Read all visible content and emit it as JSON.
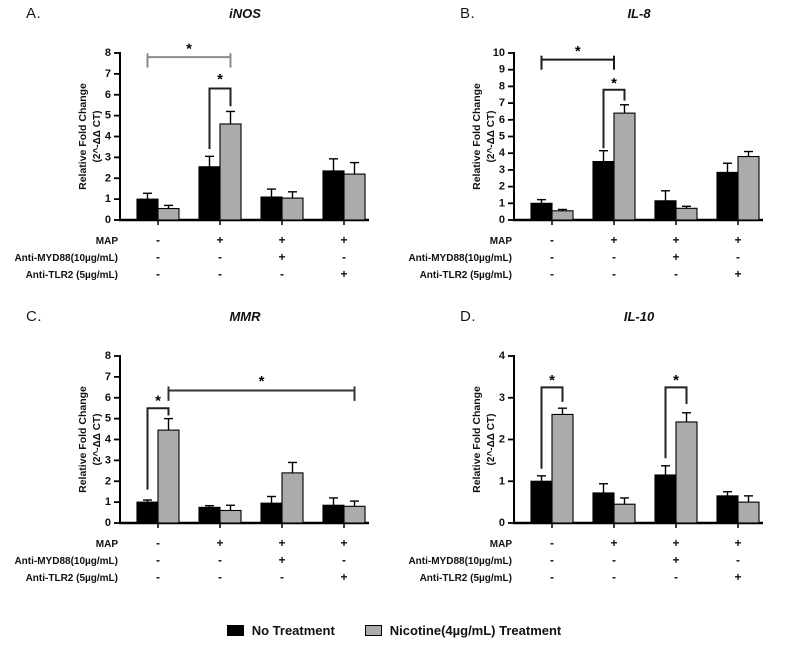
{
  "legend": {
    "items": [
      {
        "label": "No Treatment",
        "color": "#000000"
      },
      {
        "label": "Nicotine(4µg/mL) Treatment",
        "color": "#ababab"
      }
    ]
  },
  "chart_data": [
    {
      "type": "bar",
      "id": "inos",
      "panel": "A.",
      "title": "iNOS",
      "ylabel_line1": "Relative Fold Change",
      "ylabel_line2": "(2^-ΔΔ CT)",
      "ylim": [
        0,
        8
      ],
      "ytick_step": 1,
      "grid": false,
      "series": [
        {
          "name": "No Treatment",
          "color": "#000000",
          "values": [
            1.0,
            2.55,
            1.1,
            2.35
          ],
          "errors": [
            0.28,
            0.5,
            0.38,
            0.58
          ]
        },
        {
          "name": "Nicotine(4µg/mL) Treatment",
          "color": "#ababab",
          "values": [
            0.55,
            4.6,
            1.05,
            2.2
          ],
          "errors": [
            0.15,
            0.6,
            0.3,
            0.55
          ]
        }
      ],
      "conditions": [
        {
          "label": "MAP",
          "signs": [
            "-",
            "+",
            "+",
            "+"
          ]
        },
        {
          "label": "Anti-MYD88(10µg/mL)",
          "signs": [
            "-",
            "-",
            "+",
            "-"
          ]
        },
        {
          "label": "Anti-TLR2 (5µg/mL)",
          "signs": [
            "-",
            "-",
            "-",
            "+"
          ]
        }
      ],
      "significance": [
        {
          "style": "span",
          "x1": {
            "group": 0,
            "at": 0
          },
          "x2": {
            "group": 1,
            "at": 1
          },
          "y": 7.8,
          "cap": 0.5,
          "star_y": 8.4,
          "label": "*",
          "color": "#8c8c8c"
        },
        {
          "style": "bracket",
          "x1": {
            "group": 1,
            "at": 0
          },
          "x2": {
            "group": 1,
            "at": 1
          },
          "y": 6.3,
          "drop1": 2.9,
          "drop2": 0.85,
          "star_y": 6.95,
          "label": "*",
          "color": "#222222"
        }
      ]
    },
    {
      "type": "bar",
      "id": "il8",
      "panel": "B.",
      "title": "IL-8",
      "ylabel_line1": "Relative Fold Change",
      "ylabel_line2": "(2^-ΔΔ CT)",
      "ylim": [
        0,
        10
      ],
      "ytick_step": 1,
      "grid": false,
      "series": [
        {
          "name": "No Treatment",
          "color": "#000000",
          "values": [
            1.0,
            3.5,
            1.15,
            2.85
          ],
          "errors": [
            0.22,
            0.65,
            0.6,
            0.55
          ]
        },
        {
          "name": "Nicotine(4µg/mL) Treatment",
          "color": "#ababab",
          "values": [
            0.55,
            6.4,
            0.7,
            3.8
          ],
          "errors": [
            0.08,
            0.5,
            0.12,
            0.3
          ]
        }
      ],
      "conditions": [
        {
          "label": "MAP",
          "signs": [
            "-",
            "+",
            "+",
            "+"
          ]
        },
        {
          "label": "Anti-MYD88(10µg/mL)",
          "signs": [
            "-",
            "-",
            "+",
            "-"
          ]
        },
        {
          "label": "Anti-TLR2 (5µg/mL)",
          "signs": [
            "-",
            "-",
            "-",
            "+"
          ]
        }
      ],
      "significance": [
        {
          "style": "span",
          "x1": {
            "group": 0,
            "at": 0
          },
          "x2": {
            "group": 1,
            "at": "mid"
          },
          "y": 9.6,
          "cap": 0.6,
          "star_y": 10.35,
          "label": "*",
          "color": "#1a1a1a"
        },
        {
          "style": "bracket",
          "x1": {
            "group": 1,
            "at": 0
          },
          "x2": {
            "group": 1,
            "at": 1
          },
          "y": 7.8,
          "drop1": 3.5,
          "drop2": 0.65,
          "star_y": 8.45,
          "label": "*",
          "color": "#222222"
        }
      ]
    },
    {
      "type": "bar",
      "id": "mmr",
      "panel": "C.",
      "title": "MMR",
      "ylabel_line1": "Relative Fold Change",
      "ylabel_line2": "(2^-ΔΔ CT)",
      "ylim": [
        0,
        8
      ],
      "ytick_step": 1,
      "grid": false,
      "series": [
        {
          "name": "No Treatment",
          "color": "#000000",
          "values": [
            1.0,
            0.75,
            0.95,
            0.85
          ],
          "errors": [
            0.1,
            0.08,
            0.32,
            0.35
          ]
        },
        {
          "name": "Nicotine(4µg/mL) Treatment",
          "color": "#ababab",
          "values": [
            4.45,
            0.6,
            2.4,
            0.8
          ],
          "errors": [
            0.55,
            0.25,
            0.5,
            0.25
          ]
        }
      ],
      "conditions": [
        {
          "label": "MAP",
          "signs": [
            "-",
            "+",
            "+",
            "+"
          ]
        },
        {
          "label": "Anti-MYD88(10µg/mL)",
          "signs": [
            "-",
            "-",
            "+",
            "-"
          ]
        },
        {
          "label": "Anti-TLR2 (5µg/mL)",
          "signs": [
            "-",
            "-",
            "-",
            "+"
          ]
        }
      ],
      "significance": [
        {
          "style": "bracket",
          "x1": {
            "group": 0,
            "at": 0
          },
          "x2": {
            "group": 0,
            "at": 1
          },
          "y": 5.5,
          "drop1": 3.9,
          "drop2": 0.35,
          "star_y": 6.05,
          "label": "*",
          "color": "#222222"
        },
        {
          "style": "span",
          "x1": {
            "group": 0,
            "at": 1
          },
          "x2": {
            "group": 3,
            "at": 1
          },
          "y": 6.35,
          "cap": 0.5,
          "star_y": 7.0,
          "label": "*",
          "color": "#333333"
        }
      ]
    },
    {
      "type": "bar",
      "id": "il10",
      "panel": "D.",
      "title": "IL-10",
      "ylabel_line1": "Relative Fold Change",
      "ylabel_line2": "(2^-ΔΔ CT)",
      "ylim": [
        0,
        4
      ],
      "ytick_step": 1,
      "grid": false,
      "series": [
        {
          "name": "No Treatment",
          "color": "#000000",
          "values": [
            1.0,
            0.72,
            1.15,
            0.65
          ],
          "errors": [
            0.13,
            0.22,
            0.22,
            0.1
          ]
        },
        {
          "name": "Nicotine(4µg/mL) Treatment",
          "color": "#ababab",
          "values": [
            2.6,
            0.45,
            2.42,
            0.5
          ],
          "errors": [
            0.15,
            0.15,
            0.22,
            0.15
          ]
        }
      ],
      "conditions": [
        {
          "label": "MAP",
          "signs": [
            "-",
            "+",
            "+",
            "+"
          ]
        },
        {
          "label": "Anti-MYD88(10µg/mL)",
          "signs": [
            "-",
            "-",
            "+",
            "-"
          ]
        },
        {
          "label": "Anti-TLR2 (5µg/mL)",
          "signs": [
            "-",
            "-",
            "-",
            "+"
          ]
        }
      ],
      "significance": [
        {
          "style": "bracket",
          "x1": {
            "group": 0,
            "at": 0
          },
          "x2": {
            "group": 0,
            "at": 1
          },
          "y": 3.25,
          "drop1": 1.95,
          "drop2": 0.35,
          "star_y": 3.52,
          "label": "*",
          "color": "#222222"
        },
        {
          "style": "bracket",
          "x1": {
            "group": 2,
            "at": 0
          },
          "x2": {
            "group": 2,
            "at": 1
          },
          "y": 3.25,
          "drop1": 1.7,
          "drop2": 0.4,
          "star_y": 3.52,
          "label": "*",
          "color": "#222222"
        }
      ]
    }
  ]
}
